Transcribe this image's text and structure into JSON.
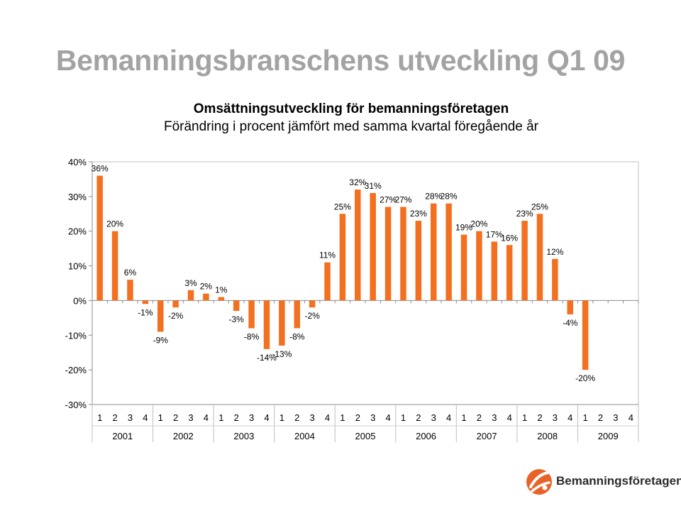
{
  "page_title": "Bemanningsbranschens utveckling Q1 09",
  "colors": {
    "bar": "#f37021",
    "title_grey": "#a3a3a3",
    "axis": "#8c8c8c",
    "logo_orange": "#e8632a"
  },
  "logo_text": "Bemanningsföretagen",
  "chart_data": {
    "type": "bar",
    "title": "Omsättningsutveckling för bemanningsföretagen",
    "subtitle": "Förändring i procent jämfört med samma kvartal föregående år",
    "xlabel": "",
    "ylabel": "",
    "ylim": [
      -30,
      40
    ],
    "yticks": [
      40,
      30,
      20,
      10,
      0,
      -10,
      -20,
      -30
    ],
    "ytick_labels": [
      "40%",
      "30%",
      "20%",
      "10%",
      "0%",
      "-10%",
      "-20%",
      "-30%"
    ],
    "grid": false,
    "legend": "none",
    "years": [
      "2001",
      "2002",
      "2003",
      "2004",
      "2005",
      "2006",
      "2007",
      "2008",
      "2009"
    ],
    "quarters": [
      "1",
      "2",
      "3",
      "4"
    ],
    "categories": [
      "1",
      "2",
      "3",
      "4",
      "1",
      "2",
      "3",
      "4",
      "1",
      "2",
      "3",
      "4",
      "1",
      "2",
      "3",
      "4",
      "1",
      "2",
      "3",
      "4",
      "1",
      "2",
      "3",
      "4",
      "1",
      "2",
      "3",
      "4",
      "1",
      "2",
      "3",
      "4",
      "1",
      "2",
      "3",
      "4"
    ],
    "values": [
      36,
      20,
      6,
      -1,
      -9,
      -2,
      3,
      2,
      1,
      -3,
      -8,
      -14,
      -13,
      -8,
      -2,
      11,
      25,
      32,
      31,
      27,
      27,
      23,
      28,
      28,
      19,
      20,
      17,
      16,
      23,
      25,
      12,
      -4,
      -20,
      null,
      null,
      null
    ],
    "data_labels": [
      "36%",
      "20%",
      "6%",
      "-1%",
      "-9%",
      "-2%",
      "3%",
      "2%",
      "1%",
      "-3%",
      "-8%",
      "-14%",
      "-13%",
      "-8%",
      "-2%",
      "11%",
      "25%",
      "32%",
      "31%",
      "27%",
      "27%",
      "23%",
      "28%",
      "28%",
      "19%",
      "20%",
      "17%",
      "16%",
      "23%",
      "25%",
      "12%",
      "-4%",
      "-20%",
      "",
      "",
      ""
    ]
  }
}
